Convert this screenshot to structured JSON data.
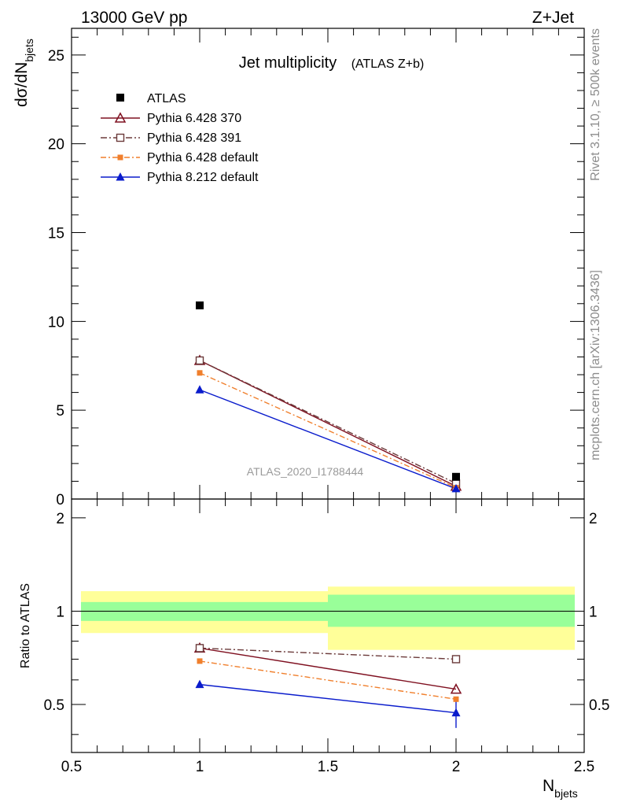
{
  "header": {
    "energy_label": "13000 GeV pp",
    "process_label": "Z+Jet"
  },
  "side_labels": {
    "rivet": "Rivet 3.1.10, ≥ 500k events",
    "mcplots": "mcplots.cern.ch [arXiv:1306.3436]"
  },
  "watermark": "ATLAS_2020_I1788444",
  "colors": {
    "atlas": "#000000",
    "py370": "#7f1020",
    "py391": "#6b3a3a",
    "py6default": "#f07f2c",
    "py8default": "#0a1ccc",
    "band_inner": "#99ff99",
    "band_outer": "#ffff99"
  },
  "chart_data": [
    {
      "type": "line",
      "panel": "main",
      "title": "Jet multiplicity",
      "subtitle": "(ATLAS Z+b)",
      "ylabel_main": "dσ/dN",
      "ylabel_sub": "bjets",
      "xlim": [
        0.5,
        2.5
      ],
      "ylim": [
        0,
        26.5
      ],
      "yticks": [
        0,
        5,
        10,
        15,
        20,
        25
      ],
      "ytick_labels": [
        "0",
        "5",
        "10",
        "15",
        "20",
        "25"
      ],
      "x": [
        1,
        2
      ],
      "data": {
        "name": "ATLAS",
        "values": [
          10.9,
          1.25
        ]
      },
      "series": [
        {
          "key": "py370",
          "name": "Pythia 6.428 370",
          "marker": "triangle-open",
          "dash": "",
          "values": [
            7.8,
            0.72
          ]
        },
        {
          "key": "py391",
          "name": "Pythia 6.428 391",
          "marker": "square-open",
          "dash": "8 3 2 3",
          "values": [
            7.8,
            0.88
          ]
        },
        {
          "key": "py6default",
          "name": "Pythia 6.428 default",
          "marker": "square-filled",
          "dash": "7 3 2 3",
          "values": [
            7.1,
            0.64
          ]
        },
        {
          "key": "py8default",
          "name": "Pythia 8.212 default",
          "marker": "triangle-filled",
          "dash": "",
          "values": [
            6.15,
            0.58
          ]
        }
      ]
    },
    {
      "type": "line",
      "panel": "ratio",
      "ylabel": "Ratio to ATLAS",
      "xlabel_main": "N",
      "xlabel_sub": "bjets",
      "xlim": [
        0.5,
        2.5
      ],
      "ylim": [
        0.35,
        2.3
      ],
      "yticks": [
        0.5,
        1,
        2
      ],
      "ytick_labels": [
        "0.5",
        "1",
        "2"
      ],
      "xticks": [
        0.5,
        1,
        1.5,
        2,
        2.5
      ],
      "xtick_labels": [
        "0.5",
        "1",
        "1.5",
        "2",
        "2.5"
      ],
      "x": [
        1,
        2
      ],
      "bands": [
        {
          "xlo": 0.5,
          "xhi": 1.5,
          "inner": [
            0.93,
            1.07
          ],
          "outer": [
            0.85,
            1.16
          ]
        },
        {
          "xlo": 1.5,
          "xhi": 2.5,
          "inner": [
            0.89,
            1.13
          ],
          "outer": [
            0.75,
            1.2
          ]
        }
      ],
      "series": [
        {
          "key": "py370",
          "values": [
            0.76,
            0.56
          ]
        },
        {
          "key": "py391",
          "values": [
            0.76,
            0.7
          ]
        },
        {
          "key": "py6default",
          "values": [
            0.69,
            0.52
          ]
        },
        {
          "key": "py8default",
          "values": [
            0.58,
            0.47
          ],
          "err_last": [
            0.42,
            0.52
          ]
        }
      ]
    }
  ]
}
